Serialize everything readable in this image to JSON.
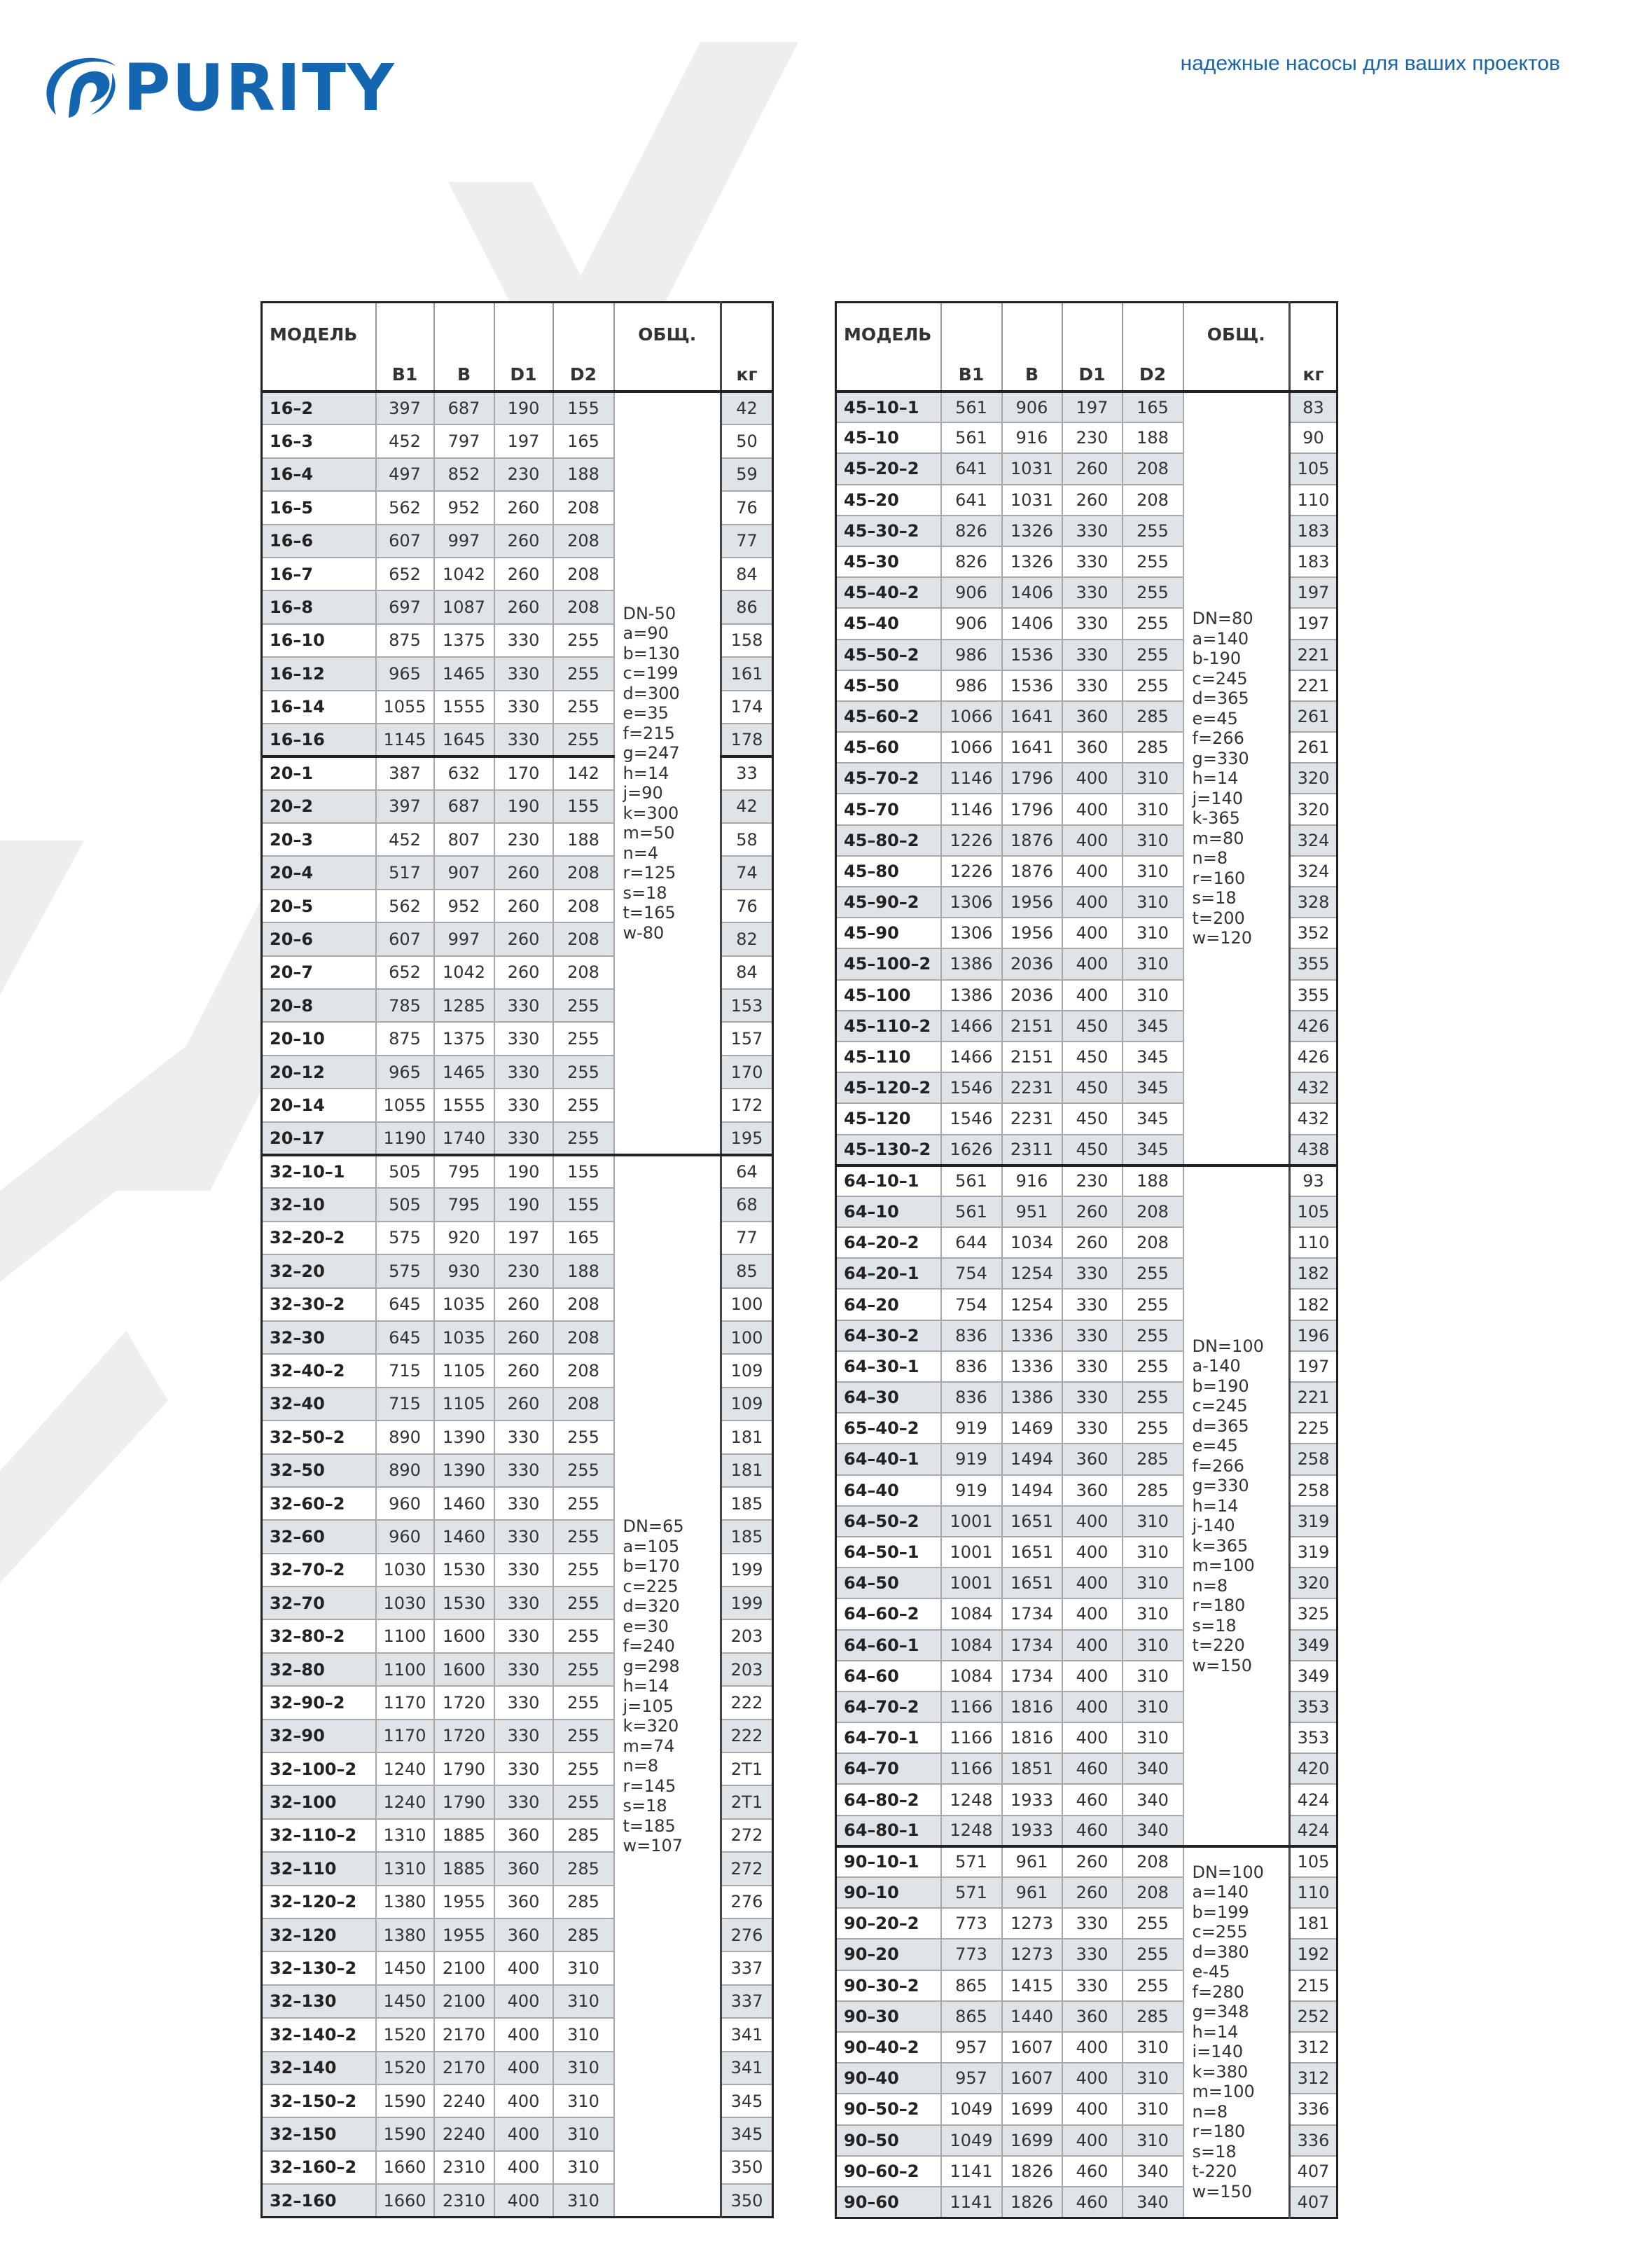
{
  "header": {
    "logo_text": "PURITY",
    "tagline": "надежные насосы для ваших проектов",
    "brand_color": "#1466b0",
    "watermark_text": "PURITY"
  },
  "columns": {
    "model": "МОДЕЛЬ",
    "b1": "B1",
    "b": "B",
    "d1": "D1",
    "d2": "D2",
    "common": "ОБЩ.",
    "kg": "кг"
  },
  "tables": [
    {
      "groups": [
        {
          "specs": "DN-50\na=90\nb=130\nc=199\nd=300\ne=35\nf=215\ng=247\nh=14\nj=90\nk=300\nm=50\nn=4\nr=125\ns=18\nt=165\nw-80",
          "rows": [
            [
              "16–2",
              "397",
              "687",
              "190",
              "155",
              "42"
            ],
            [
              "16–3",
              "452",
              "797",
              "197",
              "165",
              "50"
            ],
            [
              "16–4",
              "497",
              "852",
              "230",
              "188",
              "59"
            ],
            [
              "16–5",
              "562",
              "952",
              "260",
              "208",
              "76"
            ],
            [
              "16–6",
              "607",
              "997",
              "260",
              "208",
              "77"
            ],
            [
              "16–7",
              "652",
              "1042",
              "260",
              "208",
              "84"
            ],
            [
              "16–8",
              "697",
              "1087",
              "260",
              "208",
              "86"
            ],
            [
              "16–10",
              "875",
              "1375",
              "330",
              "255",
              "158"
            ],
            [
              "16–12",
              "965",
              "1465",
              "330",
              "255",
              "161"
            ],
            [
              "16–14",
              "1055",
              "1555",
              "330",
              "255",
              "174"
            ],
            [
              "16–16",
              "1145",
              "1645",
              "330",
              "255",
              "178"
            ],
            [
              "20–1",
              "387",
              "632",
              "170",
              "142",
              "33"
            ],
            [
              "20–2",
              "397",
              "687",
              "190",
              "155",
              "42"
            ],
            [
              "20–3",
              "452",
              "807",
              "230",
              "188",
              "58"
            ],
            [
              "20–4",
              "517",
              "907",
              "260",
              "208",
              "74"
            ],
            [
              "20–5",
              "562",
              "952",
              "260",
              "208",
              "76"
            ],
            [
              "20–6",
              "607",
              "997",
              "260",
              "208",
              "82"
            ],
            [
              "20–7",
              "652",
              "1042",
              "260",
              "208",
              "84"
            ],
            [
              "20–8",
              "785",
              "1285",
              "330",
              "255",
              "153"
            ],
            [
              "20–10",
              "875",
              "1375",
              "330",
              "255",
              "157"
            ],
            [
              "20–12",
              "965",
              "1465",
              "330",
              "255",
              "170"
            ],
            [
              "20–14",
              "1055",
              "1555",
              "330",
              "255",
              "172"
            ],
            [
              "20–17",
              "1190",
              "1740",
              "330",
              "255",
              "195"
            ]
          ],
          "kg_break_after": 11
        },
        {
          "specs": "DN=65\na=105\nb=170\nc=225\nd=320\ne=30\nf=240\ng=298\nh=14\nj=105\nk=320\nm=74\nn=8\nr=145\ns=18\nt=185\nw=107",
          "rows": [
            [
              "32–10–1",
              "505",
              "795",
              "190",
              "155",
              "64"
            ],
            [
              "32–10",
              "505",
              "795",
              "190",
              "155",
              "68"
            ],
            [
              "32–20–2",
              "575",
              "920",
              "197",
              "165",
              "77"
            ],
            [
              "32–20",
              "575",
              "930",
              "230",
              "188",
              "85"
            ],
            [
              "32–30–2",
              "645",
              "1035",
              "260",
              "208",
              "100"
            ],
            [
              "32–30",
              "645",
              "1035",
              "260",
              "208",
              "100"
            ],
            [
              "32–40–2",
              "715",
              "1105",
              "260",
              "208",
              "109"
            ],
            [
              "32–40",
              "715",
              "1105",
              "260",
              "208",
              "109"
            ],
            [
              "32–50–2",
              "890",
              "1390",
              "330",
              "255",
              "181"
            ],
            [
              "32–50",
              "890",
              "1390",
              "330",
              "255",
              "181"
            ],
            [
              "32–60–2",
              "960",
              "1460",
              "330",
              "255",
              "185"
            ],
            [
              "32–60",
              "960",
              "1460",
              "330",
              "255",
              "185"
            ],
            [
              "32–70–2",
              "1030",
              "1530",
              "330",
              "255",
              "199"
            ],
            [
              "32–70",
              "1030",
              "1530",
              "330",
              "255",
              "199"
            ],
            [
              "32–80–2",
              "1100",
              "1600",
              "330",
              "255",
              "203"
            ],
            [
              "32–80",
              "1100",
              "1600",
              "330",
              "255",
              "203"
            ],
            [
              "32–90–2",
              "1170",
              "1720",
              "330",
              "255",
              "222"
            ],
            [
              "32–90",
              "1170",
              "1720",
              "330",
              "255",
              "222"
            ],
            [
              "32–100–2",
              "1240",
              "1790",
              "330",
              "255",
              "2T1"
            ],
            [
              "32–100",
              "1240",
              "1790",
              "330",
              "255",
              "2T1"
            ],
            [
              "32–110–2",
              "1310",
              "1885",
              "360",
              "285",
              "272"
            ],
            [
              "32–110",
              "1310",
              "1885",
              "360",
              "285",
              "272"
            ],
            [
              "32–120–2",
              "1380",
              "1955",
              "360",
              "285",
              "276"
            ],
            [
              "32–120",
              "1380",
              "1955",
              "360",
              "285",
              "276"
            ],
            [
              "32–130–2",
              "1450",
              "2100",
              "400",
              "310",
              "337"
            ],
            [
              "32–130",
              "1450",
              "2100",
              "400",
              "310",
              "337"
            ],
            [
              "32–140–2",
              "1520",
              "2170",
              "400",
              "310",
              "341"
            ],
            [
              "32–140",
              "1520",
              "2170",
              "400",
              "310",
              "341"
            ],
            [
              "32–150–2",
              "1590",
              "2240",
              "400",
              "310",
              "345"
            ],
            [
              "32–150",
              "1590",
              "2240",
              "400",
              "310",
              "345"
            ],
            [
              "32–160–2",
              "1660",
              "2310",
              "400",
              "310",
              "350"
            ],
            [
              "32–160",
              "1660",
              "2310",
              "400",
              "310",
              "350"
            ]
          ]
        }
      ]
    },
    {
      "groups": [
        {
          "specs": "DN=80\na=140\nb-190\nc=245\nd=365\ne=45\nf=266\ng=330\nh=14\nj=140\nk-365\nm=80\nn=8\nr=160\ns=18\nt=200\nw=120",
          "rows": [
            [
              "45–10–1",
              "561",
              "906",
              "197",
              "165",
              "83"
            ],
            [
              "45–10",
              "561",
              "916",
              "230",
              "188",
              "90"
            ],
            [
              "45–20–2",
              "641",
              "1031",
              "260",
              "208",
              "105"
            ],
            [
              "45–20",
              "641",
              "1031",
              "260",
              "208",
              "110"
            ],
            [
              "45–30–2",
              "826",
              "1326",
              "330",
              "255",
              "183"
            ],
            [
              "45–30",
              "826",
              "1326",
              "330",
              "255",
              "183"
            ],
            [
              "45–40–2",
              "906",
              "1406",
              "330",
              "255",
              "197"
            ],
            [
              "45–40",
              "906",
              "1406",
              "330",
              "255",
              "197"
            ],
            [
              "45–50–2",
              "986",
              "1536",
              "330",
              "255",
              "221"
            ],
            [
              "45–50",
              "986",
              "1536",
              "330",
              "255",
              "221"
            ],
            [
              "45–60–2",
              "1066",
              "1641",
              "360",
              "285",
              "261"
            ],
            [
              "45–60",
              "1066",
              "1641",
              "360",
              "285",
              "261"
            ],
            [
              "45–70–2",
              "1146",
              "1796",
              "400",
              "310",
              "320"
            ],
            [
              "45–70",
              "1146",
              "1796",
              "400",
              "310",
              "320"
            ],
            [
              "45–80–2",
              "1226",
              "1876",
              "400",
              "310",
              "324"
            ],
            [
              "45–80",
              "1226",
              "1876",
              "400",
              "310",
              "324"
            ],
            [
              "45–90–2",
              "1306",
              "1956",
              "400",
              "310",
              "328"
            ],
            [
              "45–90",
              "1306",
              "1956",
              "400",
              "310",
              "352"
            ],
            [
              "45–100–2",
              "1386",
              "2036",
              "400",
              "310",
              "355"
            ],
            [
              "45–100",
              "1386",
              "2036",
              "400",
              "310",
              "355"
            ],
            [
              "45–110–2",
              "1466",
              "2151",
              "450",
              "345",
              "426"
            ],
            [
              "45–110",
              "1466",
              "2151",
              "450",
              "345",
              "426"
            ],
            [
              "45–120–2",
              "1546",
              "2231",
              "450",
              "345",
              "432"
            ],
            [
              "45–120",
              "1546",
              "2231",
              "450",
              "345",
              "432"
            ],
            [
              "45–130–2",
              "1626",
              "2311",
              "450",
              "345",
              "438"
            ]
          ]
        },
        {
          "specs": "DN=100\na-140\nb=190\nc=245\nd=365\ne=45\nf=266\ng=330\nh=14\nj-140\nk=365\nm=100\nn=8\nr=180\ns=18\nt=220\nw=150",
          "rows": [
            [
              "64–10–1",
              "561",
              "916",
              "230",
              "188",
              "93"
            ],
            [
              "64–10",
              "561",
              "951",
              "260",
              "208",
              "105"
            ],
            [
              "64–20–2",
              "644",
              "1034",
              "260",
              "208",
              "110"
            ],
            [
              "64–20–1",
              "754",
              "1254",
              "330",
              "255",
              "182"
            ],
            [
              "64–20",
              "754",
              "1254",
              "330",
              "255",
              "182"
            ],
            [
              "64–30–2",
              "836",
              "1336",
              "330",
              "255",
              "196"
            ],
            [
              "64–30–1",
              "836",
              "1336",
              "330",
              "255",
              "197"
            ],
            [
              "64–30",
              "836",
              "1386",
              "330",
              "255",
              "221"
            ],
            [
              "65–40–2",
              "919",
              "1469",
              "330",
              "255",
              "225"
            ],
            [
              "64–40–1",
              "919",
              "1494",
              "360",
              "285",
              "258"
            ],
            [
              "64–40",
              "919",
              "1494",
              "360",
              "285",
              "258"
            ],
            [
              "64–50–2",
              "1001",
              "1651",
              "400",
              "310",
              "319"
            ],
            [
              "64–50–1",
              "1001",
              "1651",
              "400",
              "310",
              "319"
            ],
            [
              "64–50",
              "1001",
              "1651",
              "400",
              "310",
              "320"
            ],
            [
              "64–60–2",
              "1084",
              "1734",
              "400",
              "310",
              "325"
            ],
            [
              "64–60–1",
              "1084",
              "1734",
              "400",
              "310",
              "349"
            ],
            [
              "64–60",
              "1084",
              "1734",
              "400",
              "310",
              "349"
            ],
            [
              "64–70–2",
              "1166",
              "1816",
              "400",
              "310",
              "353"
            ],
            [
              "64–70–1",
              "1166",
              "1816",
              "400",
              "310",
              "353"
            ],
            [
              "64–70",
              "1166",
              "1851",
              "460",
              "340",
              "420"
            ],
            [
              "64–80–2",
              "1248",
              "1933",
              "460",
              "340",
              "424"
            ],
            [
              "64–80–1",
              "1248",
              "1933",
              "460",
              "340",
              "424"
            ]
          ]
        },
        {
          "specs": "DN=100\na=140\nb=199\nc=255\nd=380\ne-45\nf=280\ng=348\nh=14\ni=140\nk=380\nm=100\nn=8\nr=180\ns=18\nt-220\nw=150",
          "rows": [
            [
              "90–10–1",
              "571",
              "961",
              "260",
              "208",
              "105"
            ],
            [
              "90–10",
              "571",
              "961",
              "260",
              "208",
              "110"
            ],
            [
              "90–20–2",
              "773",
              "1273",
              "330",
              "255",
              "181"
            ],
            [
              "90–20",
              "773",
              "1273",
              "330",
              "255",
              "192"
            ],
            [
              "90–30–2",
              "865",
              "1415",
              "330",
              "255",
              "215"
            ],
            [
              "90–30",
              "865",
              "1440",
              "360",
              "285",
              "252"
            ],
            [
              "90–40–2",
              "957",
              "1607",
              "400",
              "310",
              "312"
            ],
            [
              "90–40",
              "957",
              "1607",
              "400",
              "310",
              "312"
            ],
            [
              "90–50–2",
              "1049",
              "1699",
              "400",
              "310",
              "336"
            ],
            [
              "90–50",
              "1049",
              "1699",
              "400",
              "310",
              "336"
            ],
            [
              "90–60–2",
              "1141",
              "1826",
              "460",
              "340",
              "407"
            ],
            [
              "90–60",
              "1141",
              "1826",
              "460",
              "340",
              "407"
            ]
          ]
        }
      ]
    }
  ]
}
